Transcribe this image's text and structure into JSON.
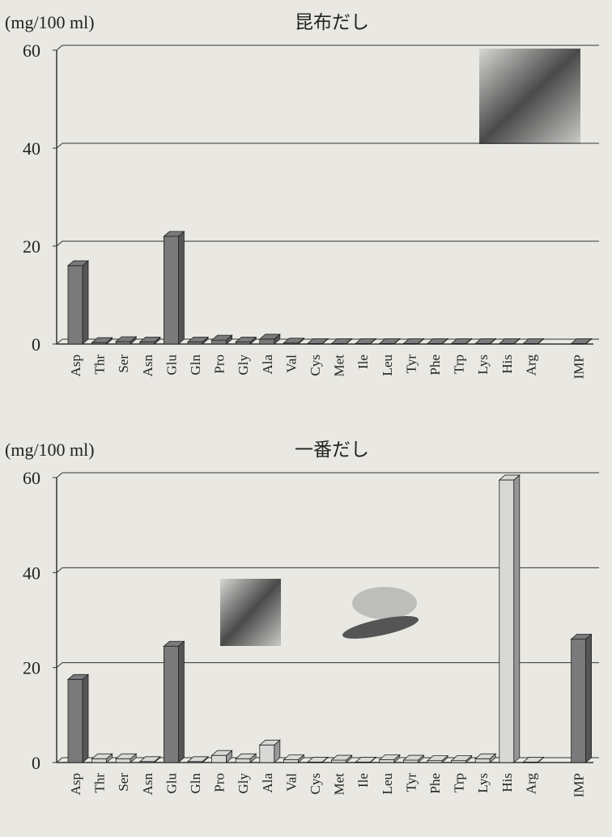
{
  "chart_data": [
    {
      "type": "bar",
      "title": "昆布だし",
      "y_label": "(mg/100 ml)",
      "categories": [
        "Asp",
        "Thr",
        "Ser",
        "Asn",
        "Glu",
        "Gln",
        "Pro",
        "Gly",
        "Ala",
        "Val",
        "Cys",
        "Met",
        "Ile",
        "Leu",
        "Tyr",
        "Phe",
        "Trp",
        "Lys",
        "His",
        "Arg",
        "IMP"
      ],
      "values": [
        16,
        0.3,
        0.5,
        0.4,
        22,
        0.4,
        0.8,
        0.4,
        1.0,
        0.2,
        0.1,
        0.1,
        0.1,
        0.1,
        0.1,
        0.1,
        0.1,
        0.1,
        0.1,
        0.1,
        0.1
      ],
      "color": "#7a7a7a",
      "ylim": [
        0,
        60
      ],
      "yticks": [
        0,
        20,
        40,
        60
      ],
      "grid": true
    },
    {
      "type": "bar",
      "title": "一番だし",
      "y_label": "(mg/100 ml)",
      "categories": [
        "Asp",
        "Thr",
        "Ser",
        "Asn",
        "Glu",
        "Gln",
        "Pro",
        "Gly",
        "Ala",
        "Val",
        "Cys",
        "Met",
        "Ile",
        "Leu",
        "Tyr",
        "Phe",
        "Trp",
        "Lys",
        "His",
        "Arg",
        "IMP"
      ],
      "values": [
        17.5,
        0.8,
        0.8,
        0.2,
        24.5,
        0.2,
        1.5,
        0.8,
        3.7,
        0.6,
        0.1,
        0.5,
        0.1,
        0.6,
        0.5,
        0.4,
        0.4,
        0.8,
        59.5,
        0.1,
        26
      ],
      "colors": [
        "#7a7a7a",
        "#d8d8d6",
        "#d8d8d6",
        "#d8d8d6",
        "#7a7a7a",
        "#d8d8d6",
        "#d8d8d6",
        "#d8d8d6",
        "#d8d8d6",
        "#d8d8d6",
        "#d8d8d6",
        "#d8d8d6",
        "#d8d8d6",
        "#d8d8d6",
        "#d8d8d6",
        "#d8d8d6",
        "#d8d8d6",
        "#d8d8d6",
        "#d8d8d6",
        "#d8d8d6",
        "#7a7a7a"
      ],
      "ylim": [
        0,
        60
      ],
      "yticks": [
        0,
        20,
        40,
        60
      ],
      "grid": true
    }
  ]
}
